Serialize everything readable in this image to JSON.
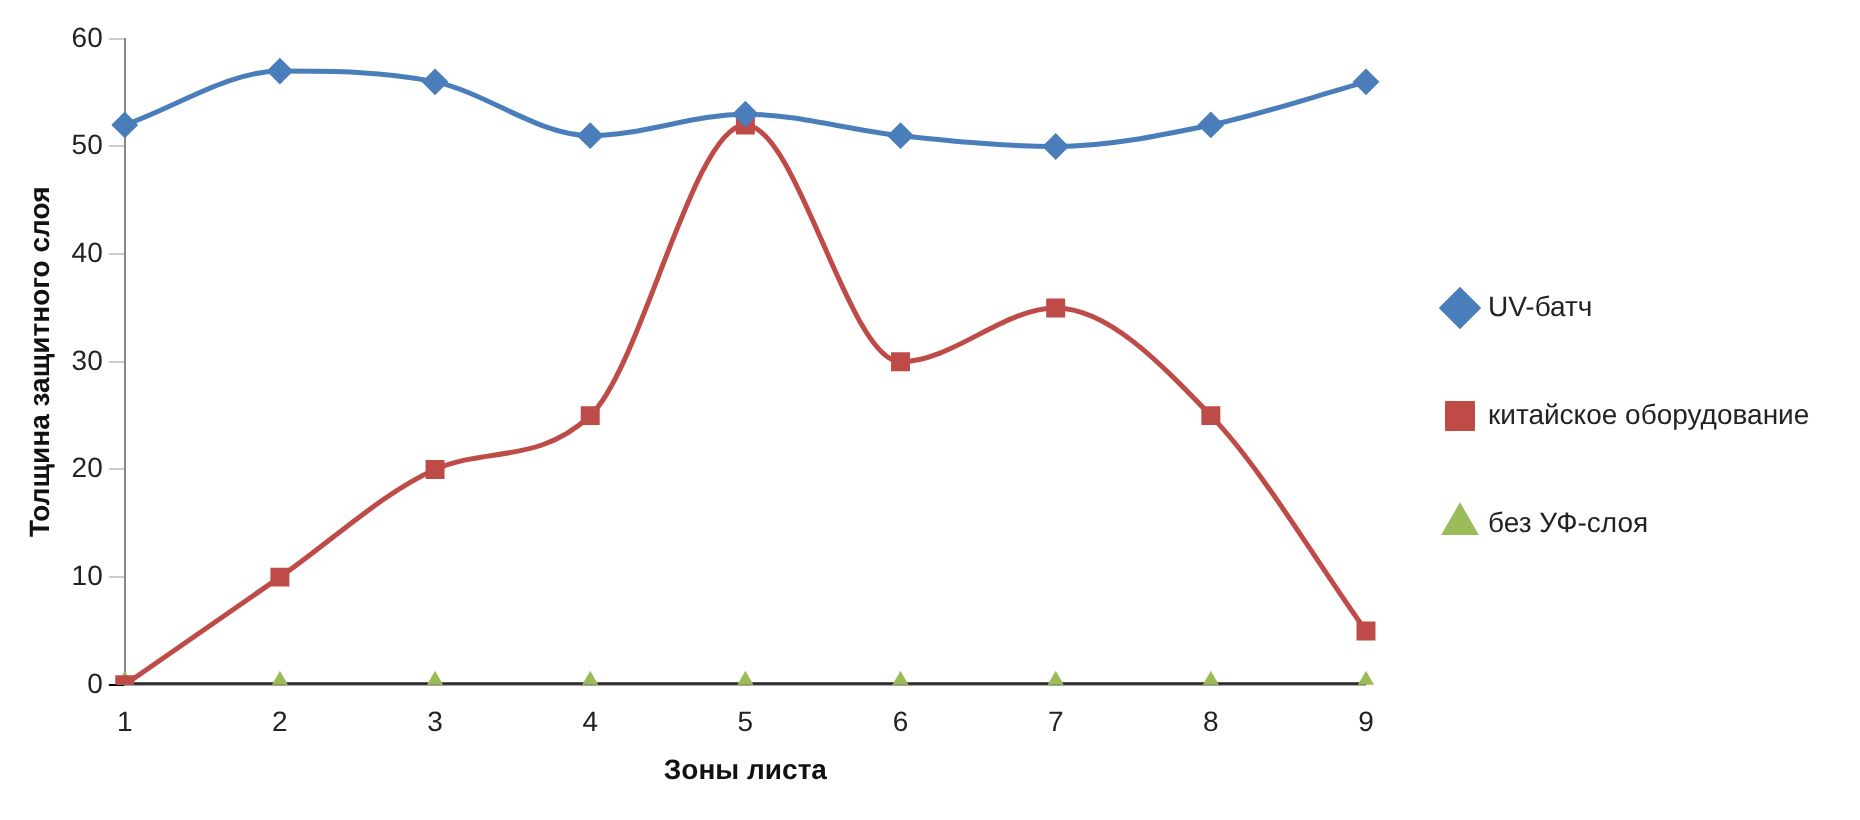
{
  "chart_data": {
    "type": "line",
    "xlabel": "Зоны листа",
    "ylabel": "Толщина защитного слоя",
    "categories": [
      "1",
      "2",
      "3",
      "4",
      "5",
      "6",
      "7",
      "8",
      "9"
    ],
    "ylim": [
      0,
      60
    ],
    "yticks": [
      0,
      10,
      20,
      30,
      40,
      50,
      60
    ],
    "grid": false,
    "legend": "right",
    "line_style": "solid",
    "series": [
      {
        "name": "UV-батч",
        "color": "#4a7ebb",
        "marker": "diamond",
        "values": [
          52,
          57,
          56,
          51,
          53,
          51,
          50,
          52,
          56
        ]
      },
      {
        "name": "китайское оборудование",
        "color": "#be4b48",
        "marker": "square",
        "values": [
          0,
          10,
          20,
          25,
          52,
          30,
          35,
          25,
          5
        ]
      },
      {
        "name": "без УФ-слоя",
        "color": "#9bbb59",
        "marker": "triangle",
        "values": [
          0,
          0,
          0,
          0,
          0,
          0,
          0,
          0,
          0
        ]
      }
    ]
  }
}
